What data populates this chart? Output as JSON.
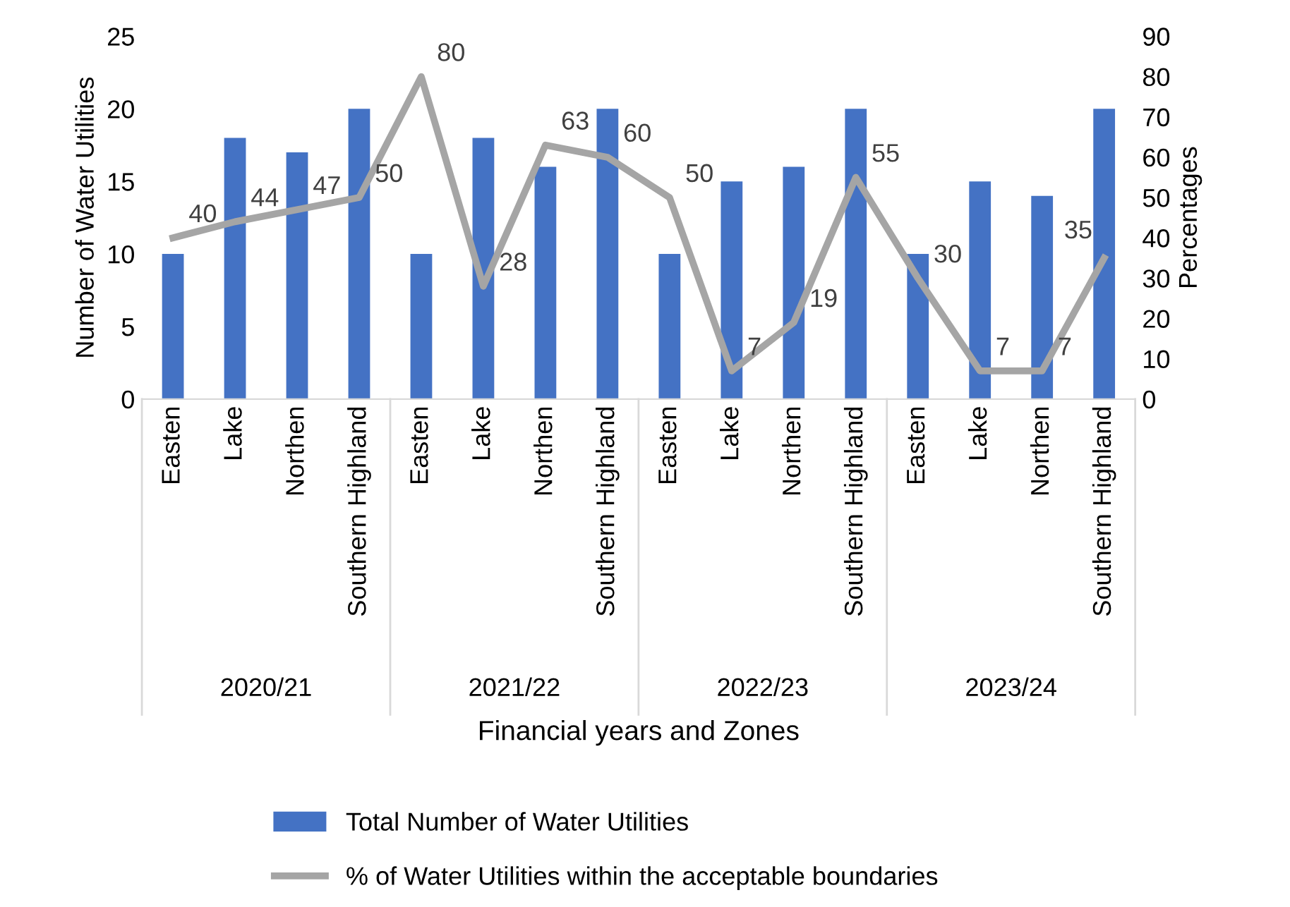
{
  "chart_data": {
    "type": "bar",
    "xlabel": "Financial years and Zones",
    "ylabel": "Number of Water Utilities",
    "y2label": "Percentages",
    "categories": [
      "Easten",
      "Lake",
      "Northen",
      "Southern Highland",
      "Easten",
      "Lake",
      "Northen",
      "Southern Highland",
      "Easten",
      "Lake",
      "Northen",
      "Southern Highland",
      "Easten",
      "Lake",
      "Northen",
      "Southern Highland"
    ],
    "annotations": [
      "2020/21",
      "2021/22",
      "2022/23",
      "2023/24"
    ],
    "series": [
      {
        "name": "Total Number of Water Utilities",
        "color": "#4472c4",
        "values": [
          10,
          18,
          17,
          20,
          10,
          18,
          16,
          20,
          10,
          15,
          16,
          20,
          10,
          15,
          14,
          20
        ]
      },
      {
        "name": "% of Water Utilities within the acceptable boundaries",
        "type": "line",
        "axis": "y2",
        "color": "#a5a5a5",
        "values": [
          40,
          44,
          47,
          50,
          80,
          28,
          63,
          60,
          50,
          7,
          19,
          55,
          30,
          7,
          7,
          35
        ],
        "value_labels": [
          "40",
          "44",
          "47",
          "50",
          "80",
          "28",
          "63",
          "60",
          "50",
          "7",
          "19",
          "55",
          "30",
          "7",
          "7",
          "35"
        ]
      }
    ],
    "ylim": [
      0,
      25
    ],
    "yticks": [
      0,
      5,
      10,
      15,
      20,
      25
    ],
    "y2lim": [
      0,
      90
    ],
    "y2ticks": [
      0,
      10,
      20,
      30,
      40,
      50,
      60,
      70,
      80,
      90
    ],
    "grid": false,
    "legend": "bottom",
    "marker": "none",
    "line_style": "solid"
  }
}
